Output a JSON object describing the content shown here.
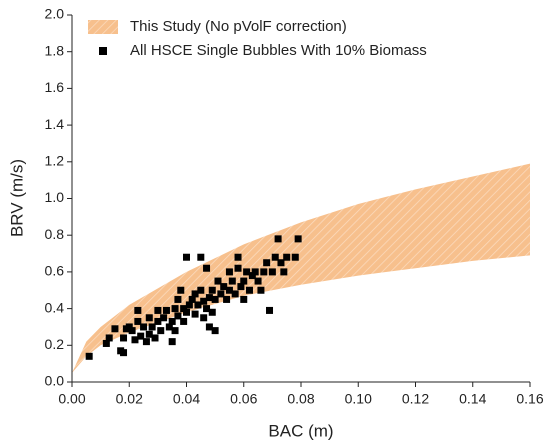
{
  "chart_data": {
    "type": "scatter",
    "x_label": "BAC (m)",
    "y_label": "BRV (m/s)",
    "xlim": [
      0,
      0.16
    ],
    "ylim": [
      0,
      2.0
    ],
    "xticks": [
      {
        "value": 0,
        "label": "0.00"
      },
      {
        "value": 0.02,
        "label": "0.02"
      },
      {
        "value": 0.04,
        "label": "0.04"
      },
      {
        "value": 0.06,
        "label": "0.06"
      },
      {
        "value": 0.08,
        "label": "0.08"
      },
      {
        "value": 0.1,
        "label": "0.10"
      },
      {
        "value": 0.12,
        "label": "0.12"
      },
      {
        "value": 0.14,
        "label": "0.14"
      },
      {
        "value": 0.16,
        "label": "0.16"
      }
    ],
    "yticks": [
      {
        "value": 0,
        "label": "0.0"
      },
      {
        "value": 0.2,
        "label": "0.2"
      },
      {
        "value": 0.4,
        "label": "0.4"
      },
      {
        "value": 0.6,
        "label": "0.6"
      },
      {
        "value": 0.8,
        "label": "0.8"
      },
      {
        "value": 1.0,
        "label": "1.0"
      },
      {
        "value": 1.2,
        "label": "1.2"
      },
      {
        "value": 1.4,
        "label": "1.4"
      },
      {
        "value": 1.6,
        "label": "1.6"
      },
      {
        "value": 1.8,
        "label": "1.8"
      },
      {
        "value": 2.0,
        "label": "2.0"
      }
    ],
    "legend": "upper-left",
    "series": [
      {
        "name": "This Study (No pVolF correction)",
        "type": "band",
        "color": "#f7c08d",
        "x": [
          0,
          0.005,
          0.01,
          0.02,
          0.04,
          0.06,
          0.08,
          0.1,
          0.12,
          0.14,
          0.16
        ],
        "upper": [
          0.05,
          0.22,
          0.3,
          0.42,
          0.6,
          0.75,
          0.87,
          0.97,
          1.05,
          1.12,
          1.19
        ],
        "lower": [
          0.05,
          0.14,
          0.2,
          0.27,
          0.38,
          0.47,
          0.53,
          0.58,
          0.62,
          0.66,
          0.69
        ]
      },
      {
        "name": "All HSCE Single Bubbles With 10% Biomass",
        "type": "scatter",
        "color": "#000000",
        "x": [
          0.006,
          0.012,
          0.013,
          0.015,
          0.017,
          0.018,
          0.018,
          0.019,
          0.02,
          0.021,
          0.022,
          0.023,
          0.023,
          0.024,
          0.025,
          0.026,
          0.027,
          0.027,
          0.028,
          0.029,
          0.03,
          0.03,
          0.031,
          0.032,
          0.033,
          0.034,
          0.035,
          0.035,
          0.036,
          0.036,
          0.037,
          0.037,
          0.038,
          0.039,
          0.039,
          0.04,
          0.04,
          0.041,
          0.042,
          0.043,
          0.043,
          0.044,
          0.045,
          0.045,
          0.046,
          0.046,
          0.047,
          0.047,
          0.048,
          0.048,
          0.049,
          0.049,
          0.05,
          0.05,
          0.051,
          0.052,
          0.053,
          0.054,
          0.055,
          0.055,
          0.056,
          0.057,
          0.058,
          0.058,
          0.059,
          0.06,
          0.06,
          0.061,
          0.062,
          0.063,
          0.064,
          0.065,
          0.066,
          0.067,
          0.068,
          0.069,
          0.07,
          0.071,
          0.072,
          0.073,
          0.074,
          0.075,
          0.078,
          0.079
        ],
        "values": [
          0.14,
          0.21,
          0.24,
          0.29,
          0.17,
          0.16,
          0.24,
          0.29,
          0.3,
          0.28,
          0.23,
          0.33,
          0.39,
          0.25,
          0.3,
          0.22,
          0.26,
          0.35,
          0.3,
          0.24,
          0.33,
          0.39,
          0.28,
          0.35,
          0.39,
          0.3,
          0.22,
          0.33,
          0.28,
          0.4,
          0.36,
          0.45,
          0.5,
          0.4,
          0.33,
          0.38,
          0.68,
          0.42,
          0.45,
          0.37,
          0.48,
          0.42,
          0.5,
          0.68,
          0.35,
          0.44,
          0.4,
          0.62,
          0.3,
          0.46,
          0.38,
          0.5,
          0.28,
          0.45,
          0.55,
          0.48,
          0.52,
          0.45,
          0.6,
          0.5,
          0.55,
          0.48,
          0.62,
          0.68,
          0.52,
          0.45,
          0.55,
          0.6,
          0.5,
          0.58,
          0.6,
          0.55,
          0.5,
          0.6,
          0.65,
          0.39,
          0.6,
          0.68,
          0.78,
          0.65,
          0.6,
          0.68,
          0.68,
          0.78
        ]
      }
    ]
  }
}
